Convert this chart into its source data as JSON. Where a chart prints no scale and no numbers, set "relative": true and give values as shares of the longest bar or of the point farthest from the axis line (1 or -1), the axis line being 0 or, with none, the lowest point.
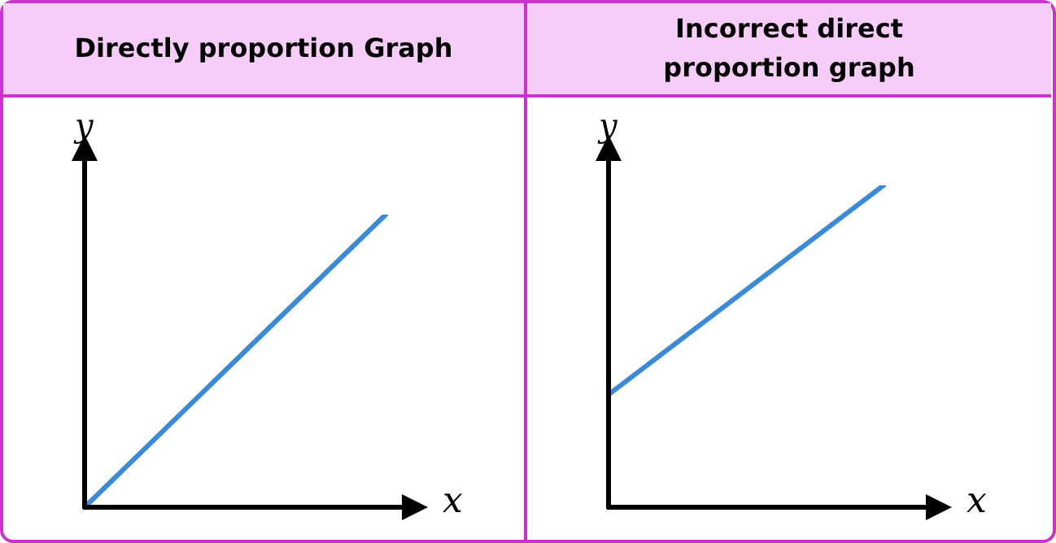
{
  "chart_data": [
    {
      "type": "line",
      "title": "Directly proportion Graph",
      "xlabel": "x",
      "ylabel": "y",
      "relative": true,
      "marker": "none",
      "categories": [
        null,
        null
      ],
      "series": [
        {
          "color": "#3a8ad8",
          "values": [
            0,
            1
          ]
        }
      ]
    },
    {
      "type": "line",
      "title": "Incorrect direct proportion graph",
      "xlabel": "x",
      "ylabel": "y",
      "relative": true,
      "marker": "none",
      "categories": [
        null,
        null
      ],
      "series": [
        {
          "color": "#3a8ad8",
          "values": [
            0.35,
            1
          ]
        }
      ]
    }
  ]
}
